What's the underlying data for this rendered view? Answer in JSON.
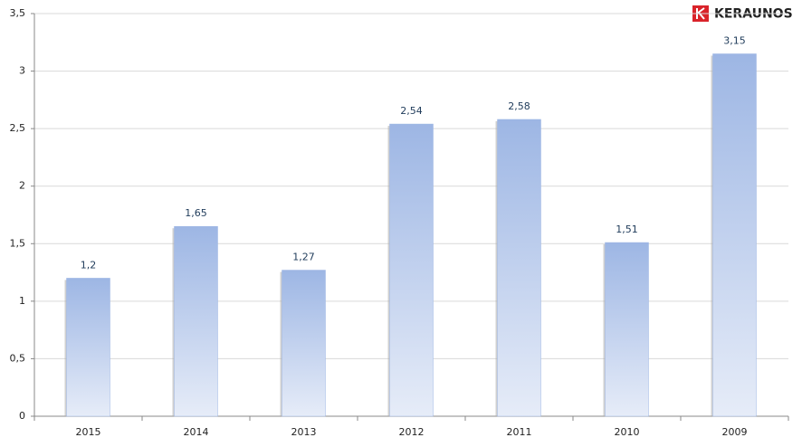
{
  "brand": "KERAUNOS",
  "chart_data": {
    "type": "bar",
    "categories": [
      "2015",
      "2014",
      "2013",
      "2012",
      "2011",
      "2010",
      "2009"
    ],
    "values": [
      1.2,
      1.65,
      1.27,
      2.54,
      2.58,
      1.51,
      3.15
    ],
    "value_labels": [
      "1,2",
      "1,65",
      "1,27",
      "2,54",
      "2,58",
      "1,51",
      "3,15"
    ],
    "color": "#9db6e4",
    "ylim": [
      0,
      3.5
    ],
    "yticks": [
      0,
      {
        "value": 0.5,
        "label": "0,5"
      },
      1,
      {
        "value": 1.5,
        "label": "1,5"
      },
      2,
      {
        "value": 2.5,
        "label": "2,5"
      },
      3,
      {
        "value": 3.5,
        "label": "3,5"
      }
    ],
    "grid": true
  }
}
